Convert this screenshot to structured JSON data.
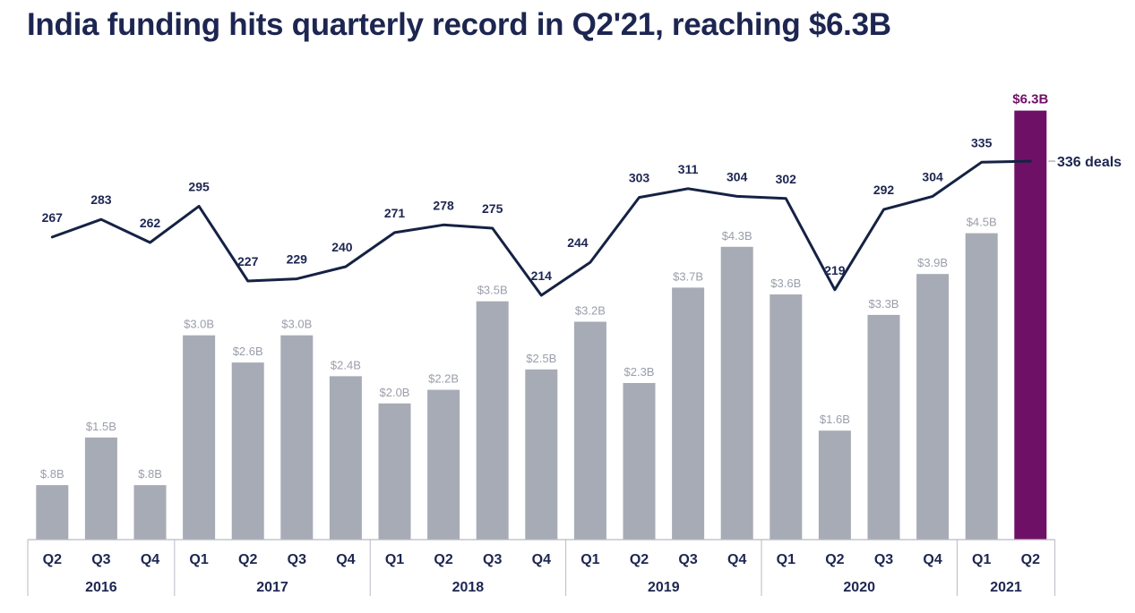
{
  "colors": {
    "bar": "#a7abb5",
    "highlight": "#6f1067",
    "line": "#152244",
    "title": "#1d2651",
    "dealLabel": "#1d2651",
    "valueLabel": "#9a9eaa",
    "axis": "#b8bbc4"
  },
  "chart_data": {
    "type": "bar",
    "title": "India funding hits quarterly record in Q2'21, reaching $6.3B",
    "categories": [
      "Q2",
      "Q3",
      "Q4",
      "Q1",
      "Q2",
      "Q3",
      "Q4",
      "Q1",
      "Q2",
      "Q3",
      "Q4",
      "Q1",
      "Q2",
      "Q3",
      "Q4",
      "Q1",
      "Q2",
      "Q3",
      "Q4",
      "Q1",
      "Q2"
    ],
    "years": [
      {
        "label": "2016",
        "count": 3
      },
      {
        "label": "2017",
        "count": 4
      },
      {
        "label": "2018",
        "count": 4
      },
      {
        "label": "2019",
        "count": 4
      },
      {
        "label": "2020",
        "count": 4
      },
      {
        "label": "2021",
        "count": 2
      }
    ],
    "series": [
      {
        "type": "bar",
        "values": [
          0.8,
          1.5,
          0.8,
          3.0,
          2.6,
          3.0,
          2.4,
          2.0,
          2.2,
          3.5,
          2.5,
          3.2,
          2.3,
          3.7,
          4.3,
          3.6,
          1.6,
          3.3,
          3.9,
          4.5,
          6.3
        ],
        "labels": [
          "$.8B",
          "$1.5B",
          "$.8B",
          "$3.0B",
          "$2.6B",
          "$3.0B",
          "$2.4B",
          "$2.0B",
          "$2.2B",
          "$3.5B",
          "$2.5B",
          "$3.2B",
          "$2.3B",
          "$3.7B",
          "$4.3B",
          "$3.6B",
          "$1.6B",
          "$3.3B",
          "$3.9B",
          "$4.5B",
          "$6.3B"
        ],
        "highlight_index": 20
      },
      {
        "type": "line",
        "values": [
          267,
          283,
          262,
          295,
          227,
          229,
          240,
          271,
          278,
          275,
          214,
          244,
          303,
          311,
          304,
          302,
          219,
          292,
          304,
          335,
          336
        ],
        "labels": [
          "267",
          "283",
          "262",
          "295",
          "227",
          "229",
          "240",
          "271",
          "278",
          "275",
          "214",
          "244",
          "303",
          "311",
          "304",
          "302",
          "219",
          "292",
          "304",
          "335",
          "336 deals"
        ]
      }
    ]
  }
}
